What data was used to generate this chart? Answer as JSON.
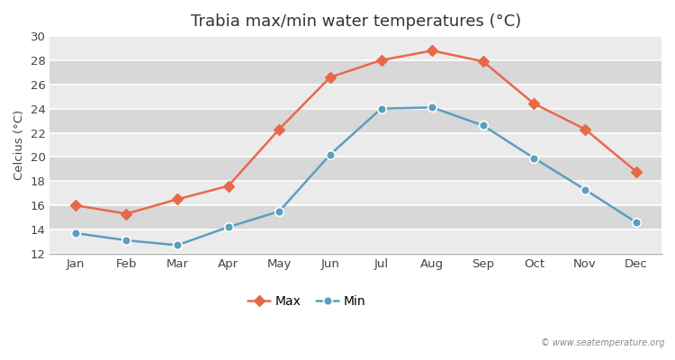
{
  "title": "Trabia max/min water temperatures (°C)",
  "ylabel": "Celcius (°C)",
  "months": [
    "Jan",
    "Feb",
    "Mar",
    "Apr",
    "May",
    "Jun",
    "Jul",
    "Aug",
    "Sep",
    "Oct",
    "Nov",
    "Dec"
  ],
  "max_values": [
    16.0,
    15.3,
    16.5,
    17.6,
    22.3,
    26.6,
    28.0,
    28.8,
    27.9,
    24.4,
    22.3,
    18.8
  ],
  "min_values": [
    13.7,
    13.1,
    12.7,
    14.2,
    15.5,
    20.2,
    24.0,
    24.1,
    22.6,
    19.9,
    17.3,
    14.6
  ],
  "max_color": "#e8694a",
  "min_color": "#5b9fc0",
  "fig_background": "#ffffff",
  "plot_bg_light": "#ebebeb",
  "plot_bg_dark": "#d8d8d8",
  "grid_color": "#ffffff",
  "ylim": [
    12,
    30
  ],
  "yticks": [
    12,
    14,
    16,
    18,
    20,
    22,
    24,
    26,
    28,
    30
  ],
  "watermark": "© www.seatemperature.org",
  "legend_labels": [
    "Max",
    "Min"
  ]
}
